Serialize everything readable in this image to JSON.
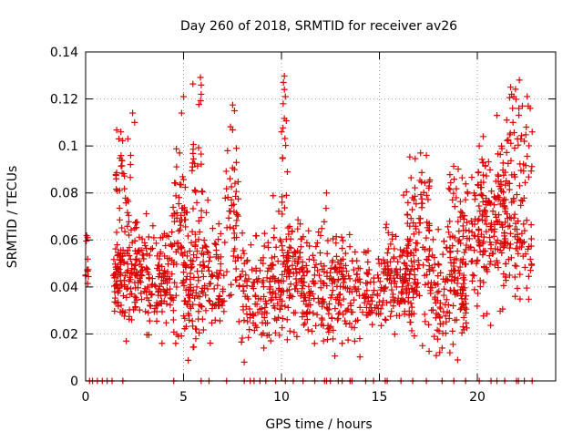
{
  "chart_data": {
    "type": "scatter",
    "title": "Day 260 of 2018, SRMTID for receiver av26",
    "xlabel": "GPS time / hours",
    "ylabel": "SRMTID / TECUs",
    "xlim": [
      0,
      24
    ],
    "ylim": [
      0,
      0.14
    ],
    "xticks": [
      0,
      5,
      10,
      15,
      20
    ],
    "xtick_labels": [
      "0",
      "5",
      "10",
      "15",
      "20"
    ],
    "yticks": [
      0,
      0.02,
      0.04,
      0.06,
      0.08,
      0.1,
      0.12,
      0.14
    ],
    "ytick_labels": [
      "0",
      "0.02",
      "0.04",
      "0.06",
      "0.08",
      "0.1",
      "0.12",
      "0.14"
    ],
    "grid": true,
    "marker": "plus",
    "color": "#dd0000",
    "zero_x": [
      0.2,
      0.35,
      0.6,
      0.85,
      1.1,
      1.35,
      1.9,
      4.5,
      5.9,
      6.3,
      7.2,
      8.1,
      8.4,
      8.6,
      8.9,
      9.2,
      9.7,
      10.2,
      10.6,
      11.1,
      11.7,
      12.2,
      12.3,
      12.5,
      12.9,
      13.1,
      13.5,
      13.6,
      14.3,
      14.7,
      15.3,
      15.4,
      16.1,
      16.7,
      17.4,
      18.2,
      18.8,
      19.4,
      20.1,
      20.7,
      21.0,
      21.4,
      22.0,
      22.1,
      22.4,
      22.8
    ],
    "clusters": [
      {
        "x0": 0.0,
        "x1": 0.15,
        "center": 0.052,
        "spread": 0.007,
        "count": 10
      },
      {
        "x0": 1.4,
        "x1": 2.0,
        "center": 0.042,
        "spread": 0.008,
        "count": 60
      },
      {
        "x0": 1.5,
        "x1": 2.3,
        "center": 0.075,
        "spread": 0.02,
        "count": 40
      },
      {
        "x0": 2.0,
        "x1": 2.6,
        "center": 0.045,
        "spread": 0.012,
        "count": 45
      },
      {
        "x0": 2.5,
        "x1": 4.4,
        "center": 0.045,
        "spread": 0.011,
        "count": 150
      },
      {
        "x0": 4.4,
        "x1": 5.2,
        "center": 0.055,
        "spread": 0.02,
        "count": 70
      },
      {
        "x0": 5.0,
        "x1": 7.1,
        "center": 0.042,
        "spread": 0.012,
        "count": 160
      },
      {
        "x0": 5.4,
        "x1": 6.0,
        "center": 0.09,
        "spread": 0.018,
        "count": 30
      },
      {
        "x0": 7.1,
        "x1": 7.8,
        "center": 0.07,
        "spread": 0.018,
        "count": 50
      },
      {
        "x0": 7.8,
        "x1": 9.5,
        "center": 0.038,
        "spread": 0.011,
        "count": 110
      },
      {
        "x0": 9.5,
        "x1": 11.0,
        "center": 0.045,
        "spread": 0.013,
        "count": 130
      },
      {
        "x0": 10.0,
        "x1": 10.3,
        "center": 0.1,
        "spread": 0.015,
        "count": 12
      },
      {
        "x0": 11.0,
        "x1": 13.5,
        "center": 0.04,
        "spread": 0.012,
        "count": 190
      },
      {
        "x0": 13.5,
        "x1": 15.2,
        "center": 0.037,
        "spread": 0.009,
        "count": 90
      },
      {
        "x0": 15.2,
        "x1": 17.0,
        "center": 0.045,
        "spread": 0.01,
        "count": 140
      },
      {
        "x0": 16.2,
        "x1": 17.6,
        "center": 0.065,
        "spread": 0.013,
        "count": 80
      },
      {
        "x0": 17.5,
        "x1": 19.5,
        "center": 0.04,
        "spread": 0.012,
        "count": 140
      },
      {
        "x0": 18.5,
        "x1": 20.5,
        "center": 0.062,
        "spread": 0.015,
        "count": 110
      },
      {
        "x0": 20.0,
        "x1": 21.5,
        "center": 0.07,
        "spread": 0.02,
        "count": 110
      },
      {
        "x0": 21.0,
        "x1": 22.8,
        "center": 0.065,
        "spread": 0.018,
        "count": 110
      },
      {
        "x0": 21.5,
        "x1": 22.6,
        "center": 0.1,
        "spread": 0.012,
        "count": 30
      }
    ],
    "outliers": [
      {
        "x": 0.1,
        "y": 0.061
      },
      {
        "x": 1.7,
        "y": 0.103
      },
      {
        "x": 1.8,
        "y": 0.106
      },
      {
        "x": 2.4,
        "y": 0.114
      },
      {
        "x": 2.5,
        "y": 0.11
      },
      {
        "x": 2.3,
        "y": 0.096
      },
      {
        "x": 4.9,
        "y": 0.114
      },
      {
        "x": 5.0,
        "y": 0.121
      },
      {
        "x": 4.8,
        "y": 0.097
      },
      {
        "x": 5.9,
        "y": 0.122
      },
      {
        "x": 7.6,
        "y": 0.115
      },
      {
        "x": 7.7,
        "y": 0.099
      },
      {
        "x": 10.1,
        "y": 0.127
      },
      {
        "x": 10.15,
        "y": 0.124
      },
      {
        "x": 10.2,
        "y": 0.121
      },
      {
        "x": 10.0,
        "y": 0.106
      },
      {
        "x": 10.3,
        "y": 0.089
      },
      {
        "x": 12.3,
        "y": 0.08
      },
      {
        "x": 17.1,
        "y": 0.097
      },
      {
        "x": 17.4,
        "y": 0.096
      },
      {
        "x": 8.1,
        "y": 0.008
      },
      {
        "x": 20.1,
        "y": 0.1
      },
      {
        "x": 21.0,
        "y": 0.113
      },
      {
        "x": 21.5,
        "y": 0.111
      },
      {
        "x": 21.7,
        "y": 0.125
      },
      {
        "x": 21.75,
        "y": 0.122
      },
      {
        "x": 21.8,
        "y": 0.116
      },
      {
        "x": 22.3,
        "y": 0.117
      },
      {
        "x": 22.6,
        "y": 0.117
      },
      {
        "x": 22.7,
        "y": 0.116
      },
      {
        "x": 22.5,
        "y": 0.108
      },
      {
        "x": 22.8,
        "y": 0.106
      },
      {
        "x": 22.4,
        "y": 0.102
      },
      {
        "x": 20.3,
        "y": 0.104
      },
      {
        "x": 4.6,
        "y": 0.016
      },
      {
        "x": 3.9,
        "y": 0.016
      },
      {
        "x": 9.1,
        "y": 0.014
      },
      {
        "x": 13.1,
        "y": 0.016
      },
      {
        "x": 14.0,
        "y": 0.018
      },
      {
        "x": 18.6,
        "y": 0.012
      },
      {
        "x": 18.2,
        "y": 0.014
      },
      {
        "x": 17.2,
        "y": 0.015
      }
    ]
  }
}
